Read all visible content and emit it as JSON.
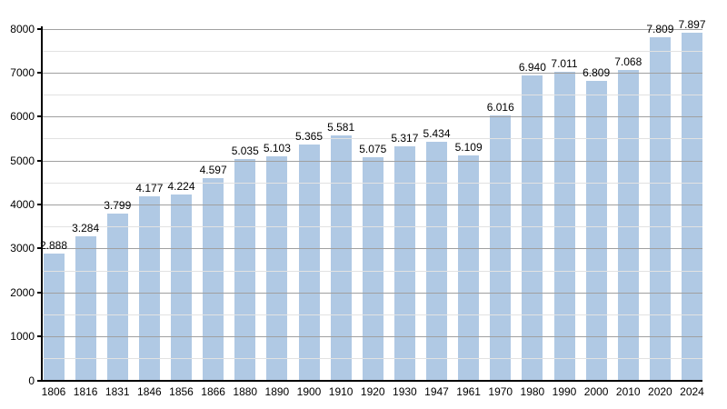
{
  "chart_data": {
    "type": "bar",
    "title": "",
    "xlabel": "",
    "ylabel": "",
    "categories": [
      "1806",
      "1816",
      "1831",
      "1846",
      "1856",
      "1866",
      "1880",
      "1890",
      "1900",
      "1910",
      "1920",
      "1930",
      "1947",
      "1961",
      "1970",
      "1980",
      "1990",
      "2000",
      "2010",
      "2020",
      "2024"
    ],
    "values": [
      2888,
      3284,
      3799,
      4177,
      4224,
      4597,
      5035,
      5103,
      5365,
      5581,
      5075,
      5317,
      5434,
      5109,
      6016,
      6940,
      7011,
      6809,
      7068,
      7809,
      7897
    ],
    "value_labels": [
      "2.888",
      "3.284",
      "3.799",
      "4.177",
      "4.224",
      "4.597",
      "5.035",
      "5.103",
      "5.365",
      "5.581",
      "5.075",
      "5.317",
      "5.434",
      "5.109",
      "6.016",
      "6.940",
      "7.011",
      "6.809",
      "7.068",
      "7.809",
      "7.897"
    ],
    "ylim": [
      0,
      8000
    ],
    "ytick_step": 1000,
    "minor_ytick_step": 500,
    "ytick_labels": [
      "0",
      "1000",
      "2000",
      "3000",
      "4000",
      "5000",
      "6000",
      "7000",
      "8000"
    ],
    "grid": true,
    "legend": "none",
    "colors": {
      "bar": "#b0c9e4",
      "major_gridline": "#a0a0a0",
      "minor_gridline": "#e2e2e2",
      "axis": "#000000",
      "text": "#000000",
      "background": "#ffffff"
    }
  }
}
